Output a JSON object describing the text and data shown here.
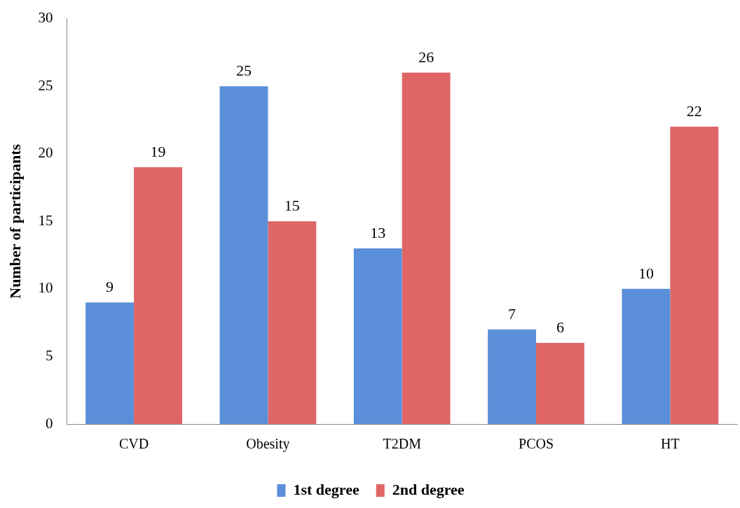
{
  "chart_data": {
    "type": "bar",
    "ylabel": "Number of participants",
    "categories": [
      "CVD",
      "Obesity",
      "T2DM",
      "PCOS",
      "HT"
    ],
    "series": [
      {
        "name": "1st degree",
        "color": "#5b8fd9",
        "values": [
          9,
          25,
          13,
          7,
          10
        ]
      },
      {
        "name": "2nd degree",
        "color": "#e06666",
        "values": [
          19,
          15,
          26,
          6,
          22
        ]
      }
    ],
    "ylim": [
      0,
      30
    ],
    "yticks": [
      0,
      5,
      10,
      15,
      20,
      25,
      30
    ],
    "grid": false,
    "legend": "bottom",
    "data_labels": true
  }
}
